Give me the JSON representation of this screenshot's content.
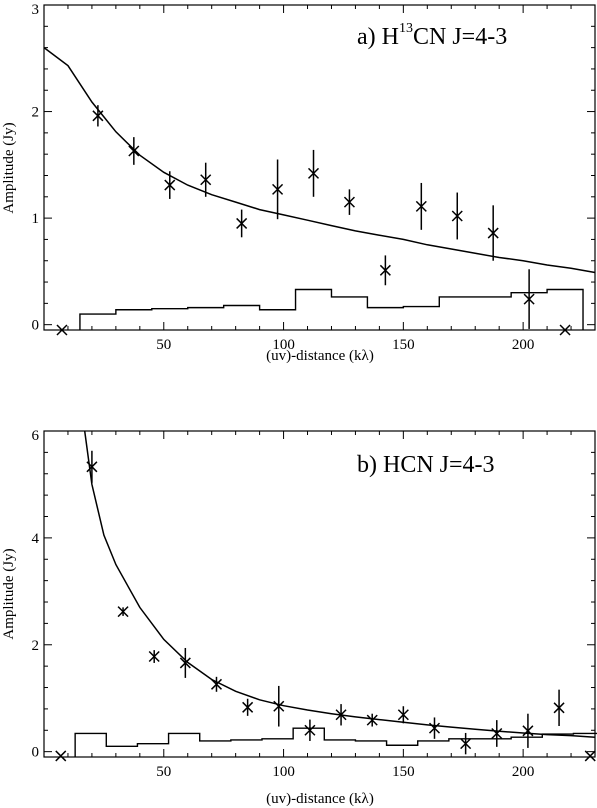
{
  "chart_data": [
    {
      "type": "scatter",
      "title": "a) H",
      "title_sup": "13",
      "title_rest": "CN J=4-3",
      "xlabel": "(uv)-distance (kλ)",
      "ylabel": "Amplitude (Jy)",
      "xlim": [
        0,
        230
      ],
      "ylim": [
        -0.05,
        3
      ],
      "x_ticks": [
        50,
        100,
        150,
        200
      ],
      "y_ticks": [
        0,
        1,
        2,
        3
      ],
      "series": [
        {
          "kind": "points-with-errorbars",
          "marker": "x",
          "x": [
            7.5,
            22.5,
            37.5,
            52.5,
            67.5,
            82.5,
            97.5,
            112.5,
            127.5,
            142.5,
            157.5,
            172.5,
            187.5,
            202.5,
            217.5
          ],
          "y": [
            -0.06,
            1.96,
            1.63,
            1.31,
            1.36,
            0.95,
            1.27,
            1.42,
            1.15,
            0.51,
            1.11,
            1.02,
            0.86,
            0.24,
            -0.06
          ],
          "err": [
            0,
            0.1,
            0.13,
            0.13,
            0.16,
            0.13,
            0.28,
            0.22,
            0.12,
            0.14,
            0.22,
            0.22,
            0.26,
            0.28,
            0
          ]
        },
        {
          "kind": "model-line",
          "x": [
            0,
            10,
            20,
            30,
            40,
            50,
            60,
            70,
            80,
            90,
            100,
            110,
            120,
            130,
            140,
            150,
            160,
            170,
            180,
            190,
            200,
            210,
            220,
            230
          ],
          "y": [
            2.6,
            2.43,
            2.09,
            1.81,
            1.59,
            1.43,
            1.31,
            1.22,
            1.15,
            1.08,
            1.03,
            0.98,
            0.93,
            0.88,
            0.84,
            0.8,
            0.75,
            0.71,
            0.67,
            0.63,
            0.6,
            0.56,
            0.53,
            0.49
          ]
        },
        {
          "kind": "step",
          "edges": [
            15,
            30,
            45,
            60,
            75,
            90,
            105,
            120,
            135,
            150,
            165,
            180,
            195,
            210
          ],
          "values": [
            0.1,
            0.14,
            0.15,
            0.16,
            0.18,
            0.14,
            0.33,
            0.26,
            0.16,
            0.17,
            0.26,
            0.26,
            0.3,
            0.33
          ]
        }
      ]
    },
    {
      "type": "scatter",
      "title": "b) HCN J=4-3",
      "xlabel": "(uv)-distance (kλ)",
      "ylabel": "Amplitude (Jy)",
      "xlim": [
        0,
        230
      ],
      "ylim": [
        -0.1,
        6
      ],
      "x_ticks": [
        50,
        100,
        150,
        200
      ],
      "y_ticks": [
        0,
        2,
        4,
        6
      ],
      "series": [
        {
          "kind": "points-with-errorbars",
          "marker": "x",
          "x": [
            7,
            20,
            33,
            46,
            59,
            72,
            85,
            98,
            111,
            124,
            137,
            150,
            163,
            176,
            189,
            202,
            215,
            228
          ],
          "y": [
            -0.08,
            5.33,
            2.62,
            1.78,
            1.66,
            1.26,
            0.83,
            0.85,
            0.4,
            0.69,
            0.59,
            0.69,
            0.44,
            0.15,
            0.34,
            0.39,
            0.82,
            -0.08
          ],
          "err": [
            0,
            0.3,
            0.08,
            0.12,
            0.28,
            0.14,
            0.16,
            0.38,
            0.2,
            0.2,
            0.12,
            0.16,
            0.2,
            0.2,
            0.25,
            0.32,
            0.34,
            0
          ]
        },
        {
          "kind": "model-line",
          "x": [
            17,
            20,
            25,
            30,
            40,
            50,
            60,
            70,
            80,
            90,
            100,
            110,
            120,
            130,
            140,
            150,
            160,
            170,
            180,
            190,
            200,
            210,
            220,
            230
          ],
          "y": [
            6.0,
            5.0,
            4.05,
            3.5,
            2.7,
            2.1,
            1.67,
            1.35,
            1.13,
            0.97,
            0.86,
            0.78,
            0.71,
            0.65,
            0.6,
            0.55,
            0.5,
            0.46,
            0.42,
            0.38,
            0.35,
            0.32,
            0.3,
            0.27
          ]
        },
        {
          "kind": "step",
          "edges": [
            13,
            26,
            39,
            52,
            65,
            78,
            91,
            104,
            117,
            130,
            143,
            156,
            169,
            182,
            195,
            208,
            221
          ],
          "values": [
            0.34,
            0.1,
            0.15,
            0.34,
            0.2,
            0.22,
            0.24,
            0.44,
            0.22,
            0.2,
            0.12,
            0.2,
            0.24,
            0.24,
            0.27,
            0.33,
            0.34
          ]
        }
      ]
    }
  ]
}
